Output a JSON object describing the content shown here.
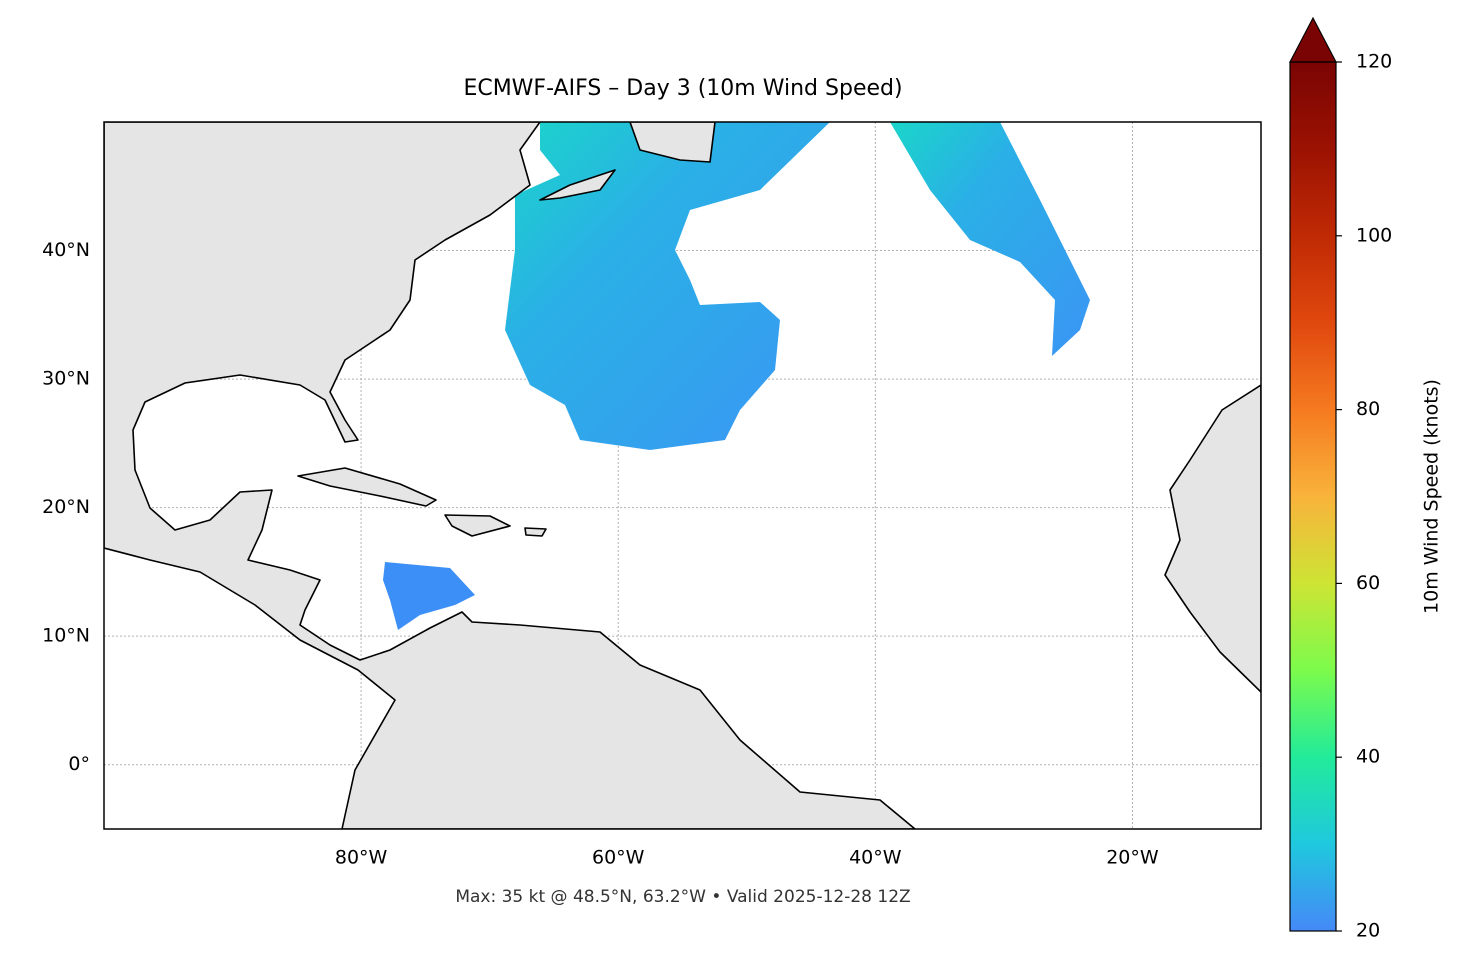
{
  "title": "ECMWF-AIFS – Day 3 (10m Wind Speed)",
  "footer": "Max: 35 kt @ 48.5°N, 63.2°W • Valid 2025-12-28 12Z",
  "map": {
    "xlim": [
      -100,
      -10
    ],
    "ylim": [
      -5,
      50
    ],
    "grid": true,
    "xticks": [
      {
        "value": -80,
        "label": "80°W"
      },
      {
        "value": -60,
        "label": "60°W"
      },
      {
        "value": -40,
        "label": "40°W"
      },
      {
        "value": -20,
        "label": "20°W"
      }
    ],
    "yticks": [
      {
        "value": 0,
        "label": "0°"
      },
      {
        "value": 10,
        "label": "10°N"
      },
      {
        "value": 20,
        "label": "20°N"
      },
      {
        "value": 30,
        "label": "30°N"
      },
      {
        "value": 40,
        "label": "40°N"
      }
    ]
  },
  "colorbar": {
    "label": "10m Wind Speed (knots)",
    "lim": [
      20,
      120
    ],
    "ticks": [
      20,
      40,
      60,
      80,
      100,
      120
    ],
    "extend": "max",
    "colors": [
      "#4589f7",
      "#1fc8de",
      "#22eb9a",
      "#7cfb4c",
      "#cde434",
      "#f9b33b",
      "#f57a20",
      "#e0480e",
      "#c02a04",
      "#9b1202",
      "#7a0403"
    ]
  }
}
